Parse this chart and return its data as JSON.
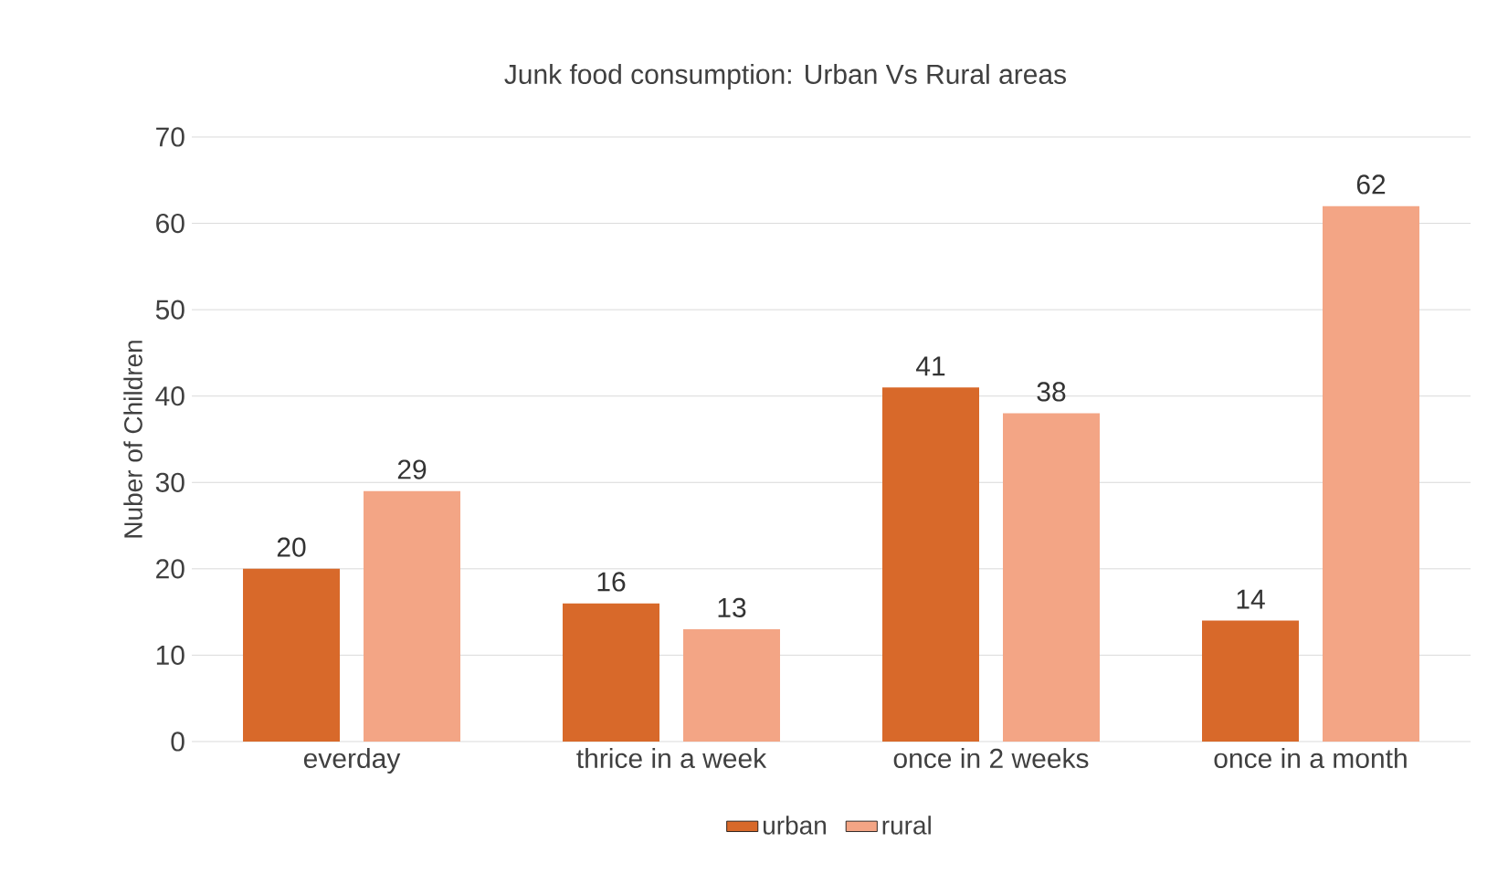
{
  "chart_data": {
    "type": "bar",
    "title": "Junk food consumption: Urban Vs Rural areas",
    "ylabel": "Nuber of Children",
    "categories": [
      "everday",
      "thrice in a week",
      "once in 2 weeks",
      "once in a month"
    ],
    "series": [
      {
        "name": "urban",
        "color": "#d8692a",
        "values": [
          20,
          16,
          41,
          14
        ]
      },
      {
        "name": "rural",
        "color": "#f3a585",
        "values": [
          29,
          13,
          38,
          62
        ]
      }
    ],
    "ylim": [
      0,
      70
    ],
    "yticks": [
      0,
      10,
      20,
      30,
      40,
      50,
      60,
      70
    ],
    "grid": "y",
    "legend": "bottom",
    "data_labels": true
  }
}
